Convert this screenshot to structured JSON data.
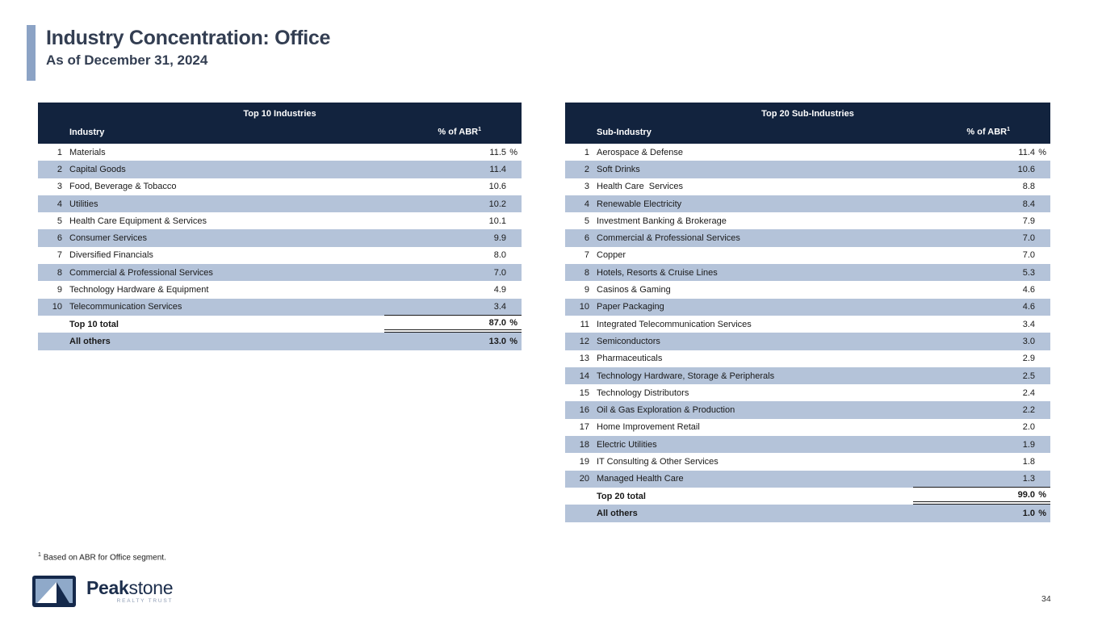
{
  "header": {
    "title": "Industry Concentration: Office",
    "subtitle": "As of December 31, 2024"
  },
  "tables": {
    "industries": {
      "title": "Top 10 Industries",
      "col_label": "Industry",
      "col_value": "% of ABR",
      "footnote_ref": "1",
      "rows": [
        {
          "rank": "1",
          "label": "Materials",
          "value": "11.5",
          "suffix": "%"
        },
        {
          "rank": "2",
          "label": "Capital Goods",
          "value": "11.4",
          "suffix": ""
        },
        {
          "rank": "3",
          "label": "Food, Beverage & Tobacco",
          "value": "10.6",
          "suffix": ""
        },
        {
          "rank": "4",
          "label": "Utilities",
          "value": "10.2",
          "suffix": ""
        },
        {
          "rank": "5",
          "label": "Health Care Equipment & Services",
          "value": "10.1",
          "suffix": ""
        },
        {
          "rank": "6",
          "label": "Consumer Services",
          "value": "9.9",
          "suffix": ""
        },
        {
          "rank": "7",
          "label": "Diversified Financials",
          "value": "8.0",
          "suffix": ""
        },
        {
          "rank": "8",
          "label": "Commercial & Professional Services",
          "value": "7.0",
          "suffix": ""
        },
        {
          "rank": "9",
          "label": "Technology Hardware & Equipment",
          "value": "4.9",
          "suffix": ""
        },
        {
          "rank": "10",
          "label": "Telecommunication Services",
          "value": "3.4",
          "suffix": ""
        }
      ],
      "total": {
        "label": "Top 10 total",
        "value": "87.0",
        "suffix": "%"
      },
      "others": {
        "label": "All others",
        "value": "13.0",
        "suffix": "%"
      }
    },
    "sub_industries": {
      "title": "Top 20 Sub-Industries",
      "col_label": "Sub-Industry",
      "col_value": "% of ABR",
      "footnote_ref": "1",
      "rows": [
        {
          "rank": "1",
          "label": "Aerospace & Defense",
          "value": "11.4",
          "suffix": "%"
        },
        {
          "rank": "2",
          "label": "Soft Drinks",
          "value": "10.6",
          "suffix": ""
        },
        {
          "rank": "3",
          "label": "Health Care  Services",
          "value": "8.8",
          "suffix": ""
        },
        {
          "rank": "4",
          "label": "Renewable Electricity",
          "value": "8.4",
          "suffix": ""
        },
        {
          "rank": "5",
          "label": "Investment Banking & Brokerage",
          "value": "7.9",
          "suffix": ""
        },
        {
          "rank": "6",
          "label": "Commercial & Professional Services",
          "value": "7.0",
          "suffix": ""
        },
        {
          "rank": "7",
          "label": "Copper",
          "value": "7.0",
          "suffix": ""
        },
        {
          "rank": "8",
          "label": "Hotels, Resorts & Cruise Lines",
          "value": "5.3",
          "suffix": ""
        },
        {
          "rank": "9",
          "label": "Casinos & Gaming",
          "value": "4.6",
          "suffix": ""
        },
        {
          "rank": "10",
          "label": "Paper Packaging",
          "value": "4.6",
          "suffix": ""
        },
        {
          "rank": "11",
          "label": "Integrated Telecommunication Services",
          "value": "3.4",
          "suffix": ""
        },
        {
          "rank": "12",
          "label": "Semiconductors",
          "value": "3.0",
          "suffix": ""
        },
        {
          "rank": "13",
          "label": "Pharmaceuticals",
          "value": "2.9",
          "suffix": ""
        },
        {
          "rank": "14",
          "label": "Technology Hardware, Storage & Peripherals",
          "value": "2.5",
          "suffix": ""
        },
        {
          "rank": "15",
          "label": "Technology Distributors",
          "value": "2.4",
          "suffix": ""
        },
        {
          "rank": "16",
          "label": "Oil & Gas Exploration & Production",
          "value": "2.2",
          "suffix": ""
        },
        {
          "rank": "17",
          "label": "Home Improvement Retail",
          "value": "2.0",
          "suffix": ""
        },
        {
          "rank": "18",
          "label": "Electric Utilities",
          "value": "1.9",
          "suffix": ""
        },
        {
          "rank": "19",
          "label": "IT Consulting & Other Services",
          "value": "1.8",
          "suffix": ""
        },
        {
          "rank": "20",
          "label": "Managed Health Care",
          "value": "1.3",
          "suffix": ""
        }
      ],
      "total": {
        "label": "Top 20 total",
        "value": "99.0",
        "suffix": "%"
      },
      "others": {
        "label": "All others",
        "value": "1.0",
        "suffix": "%"
      }
    }
  },
  "footnote": {
    "marker": "1",
    "text": "Based on ABR for Office segment."
  },
  "logo": {
    "brand_bold": "Peak",
    "brand_light": "stone",
    "tagline": "REALTY TRUST"
  },
  "footer": {
    "page_number": "34"
  },
  "colors": {
    "header_navy": "#12233E",
    "row_alt_blue": "#B4C3D9",
    "accent_bar": "#8CA3C5",
    "title_text": "#333E52"
  }
}
